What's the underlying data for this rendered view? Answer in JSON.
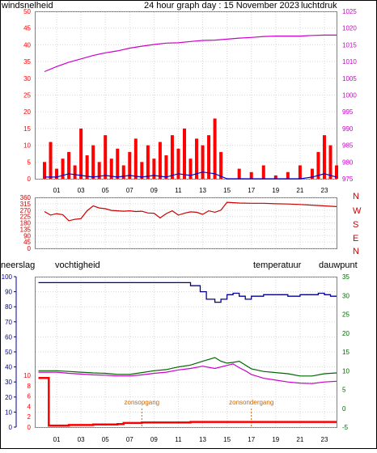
{
  "title": "24 hour graph day : 15 November 2023",
  "colors": {
    "wind": "#ff0000",
    "gust": "#0000cc",
    "pressure": "#cc00cc",
    "direction": "#cc0000",
    "humidity": "#000099",
    "temperature": "#006600",
    "dewpoint": "#cc00cc",
    "rain": "#ff0000",
    "sun": "#cc6600",
    "grid": "#d8d8d8",
    "border": "#808080"
  },
  "chart_data": [
    {
      "type": "line",
      "labels": {
        "left": "windsnelheid",
        "right": "luchtdruk"
      },
      "x_ticks": [
        "01",
        "03",
        "05",
        "07",
        "09",
        "11",
        "13",
        "15",
        "17",
        "19",
        "21",
        "23"
      ],
      "left_axis": {
        "range": [
          0,
          50
        ],
        "ticks": [
          0,
          5,
          10,
          15,
          20,
          25,
          30,
          35,
          40,
          45,
          50
        ]
      },
      "right_axis": {
        "range": [
          975,
          1025
        ],
        "ticks": [
          975,
          980,
          985,
          990,
          995,
          1000,
          1005,
          1010,
          1015,
          1020,
          1025
        ]
      },
      "series": [
        {
          "name": "windsnelheid",
          "axis": "left",
          "x": [
            0,
            0.5,
            1,
            1.5,
            2,
            2.5,
            3,
            3.5,
            4,
            4.5,
            5,
            5.5,
            6,
            6.5,
            7,
            7.5,
            8,
            8.5,
            9,
            9.5,
            10,
            10.5,
            11,
            11.5,
            12,
            12.5,
            13,
            13.5,
            14,
            14.5,
            15,
            15.5,
            16,
            16.5,
            17,
            17.5,
            18,
            18.5,
            19,
            19.5,
            20,
            20.5,
            21,
            21.5,
            22,
            22.5,
            23,
            23.5,
            24
          ],
          "y": [
            5,
            11,
            3,
            6,
            8,
            4,
            15,
            7,
            10,
            5,
            13,
            6,
            9,
            4,
            8,
            12,
            5,
            10,
            6,
            11,
            7,
            13,
            9,
            15,
            6,
            12,
            10,
            13,
            18,
            8,
            0,
            0,
            3,
            0,
            2,
            0,
            4,
            0,
            1,
            0,
            2,
            0,
            4,
            0,
            3,
            8,
            13,
            10,
            4
          ]
        },
        {
          "name": "windstoten",
          "axis": "left",
          "x": [
            0,
            1,
            2,
            3,
            4,
            5,
            6,
            7,
            8,
            9,
            10,
            11,
            12,
            13,
            14,
            15,
            16,
            17,
            18,
            19,
            20,
            21,
            22,
            23,
            24
          ],
          "y": [
            0.5,
            0.5,
            1.5,
            1,
            0.5,
            1,
            0.5,
            1,
            0.5,
            1,
            0.5,
            1.5,
            1,
            2,
            1.5,
            0,
            0,
            0,
            0,
            0,
            0,
            0,
            0.5,
            1.5,
            0.5
          ]
        },
        {
          "name": "luchtdruk",
          "axis": "right",
          "x": [
            0,
            1,
            2,
            3,
            4,
            5,
            6,
            7,
            8,
            9,
            10,
            11,
            12,
            13,
            14,
            15,
            16,
            17,
            18,
            19,
            20,
            21,
            22,
            23,
            24
          ],
          "y": [
            1007,
            1008.5,
            1009.8,
            1010.8,
            1011.8,
            1012.6,
            1013.2,
            1014,
            1014.6,
            1015.1,
            1015.5,
            1015.6,
            1016,
            1016.3,
            1016.4,
            1016.7,
            1017,
            1017.2,
            1017.5,
            1017.6,
            1017.6,
            1017.6,
            1017.8,
            1017.9,
            1017.9
          ]
        }
      ]
    },
    {
      "type": "line",
      "left_axis": {
        "range": [
          0,
          360
        ],
        "ticks": [
          0,
          45,
          90,
          135,
          180,
          225,
          270,
          315,
          360
        ]
      },
      "right_labels": [
        "N",
        "W",
        "S",
        "E",
        "N"
      ],
      "series": [
        {
          "name": "windrichting",
          "x": [
            0,
            0.5,
            1,
            1.5,
            2,
            2.5,
            3,
            3.5,
            4,
            4.5,
            5,
            5.5,
            6,
            6.5,
            7,
            7.5,
            8,
            8.5,
            9,
            9.5,
            10,
            10.5,
            11,
            11.5,
            12,
            12.5,
            13,
            13.5,
            14,
            14.5,
            15,
            16,
            17,
            18,
            19,
            20,
            21,
            22,
            23,
            24
          ],
          "y": [
            260,
            235,
            245,
            238,
            195,
            205,
            210,
            265,
            300,
            285,
            280,
            268,
            265,
            262,
            265,
            260,
            262,
            250,
            248,
            215,
            245,
            265,
            235,
            248,
            258,
            255,
            240,
            265,
            255,
            270,
            325,
            320,
            318,
            318,
            315,
            313,
            310,
            305,
            300,
            295
          ]
        }
      ]
    },
    {
      "type": "line",
      "labels": {
        "left": "neerslag",
        "left2": "vochtigheid",
        "right": "temperatuur",
        "right2": "dauwpunt"
      },
      "x_ticks": [
        "01",
        "03",
        "05",
        "07",
        "09",
        "11",
        "13",
        "15",
        "17",
        "19",
        "21",
        "23"
      ],
      "annotations": [
        "zonsopgang",
        "zonsondergang"
      ],
      "sunrise_x": 8.0,
      "sunset_x": 17.0,
      "rain_axis": {
        "range": [
          0,
          10
        ],
        "ticks": [
          0,
          2,
          4,
          6,
          8,
          10
        ]
      },
      "humidity_axis": {
        "range": [
          0,
          100
        ],
        "ticks": [
          0,
          10,
          20,
          30,
          40,
          50,
          60,
          70,
          80,
          90,
          100
        ]
      },
      "temp_axis": {
        "range": [
          -5,
          35
        ],
        "ticks": [
          -5,
          0,
          5,
          10,
          15,
          20,
          25,
          30,
          35
        ]
      },
      "series": [
        {
          "name": "neerslag",
          "axis": "rain",
          "x": [
            -0.5,
            0.2,
            0.35,
            2,
            4,
            6,
            6.5,
            8,
            10,
            12,
            14,
            16,
            18,
            20,
            22,
            24
          ],
          "y": [
            9.5,
            9.5,
            0.3,
            0.4,
            0.5,
            0.6,
            0.8,
            0.9,
            0.9,
            1.0,
            1.0,
            1.0,
            1.0,
            1.0,
            1.0,
            1.0
          ]
        },
        {
          "name": "vochtigheid",
          "axis": "humidity",
          "x": [
            -0.5,
            10,
            11,
            12,
            12.8,
            13.3,
            14,
            14.5,
            15,
            15.5,
            16,
            16.5,
            17,
            17.5,
            18,
            19,
            20,
            21,
            22,
            22.5,
            23,
            23.5,
            24
          ],
          "y": [
            96,
            96,
            96,
            94,
            90,
            85,
            83,
            85,
            88,
            89,
            87,
            85,
            87,
            87,
            88,
            88,
            87,
            88,
            88,
            89,
            88,
            87,
            87
          ]
        },
        {
          "name": "temperatuur",
          "axis": "temp",
          "x": [
            -0.5,
            1,
            2,
            3,
            4,
            5,
            6,
            7,
            8,
            9,
            10,
            11,
            12,
            13,
            13.5,
            14,
            14.5,
            15,
            15.5,
            16,
            16.5,
            17,
            18,
            19,
            20,
            21,
            22,
            23,
            24
          ],
          "y": [
            10,
            10,
            9.8,
            9.6,
            9.4,
            9.3,
            9,
            9,
            9.5,
            10,
            10.3,
            11,
            11.5,
            12.5,
            13,
            13.5,
            12.5,
            12,
            12.2,
            12.5,
            11.5,
            10.5,
            9.8,
            9.5,
            9.2,
            8.6,
            8.6,
            9.2,
            9.4
          ]
        },
        {
          "name": "dauwpunt",
          "axis": "temp",
          "x": [
            -0.5,
            1,
            2,
            3,
            4,
            5,
            6,
            7,
            8,
            9,
            10,
            11,
            12,
            13,
            14,
            15,
            15.5,
            16,
            16.5,
            17,
            18,
            19,
            20,
            21,
            22,
            23,
            24
          ],
          "y": [
            9.6,
            9.6,
            9.3,
            9.1,
            8.9,
            8.8,
            8.6,
            8.6,
            8.9,
            9.3,
            9.6,
            10.2,
            10.6,
            11.2,
            10.6,
            11.4,
            11.8,
            10.8,
            10,
            9,
            8,
            7.5,
            7,
            6.7,
            6.6,
            7,
            7.2
          ]
        }
      ]
    }
  ]
}
